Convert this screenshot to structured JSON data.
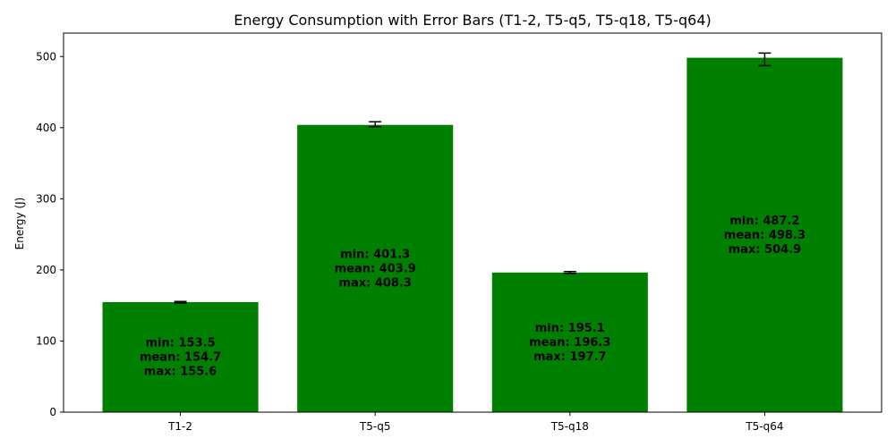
{
  "chart_data": {
    "type": "bar",
    "title": "Energy Consumption with Error Bars (T1-2, T5-q5, T5-q18, T5-q64)",
    "xlabel": "",
    "ylabel": "Energy (J)",
    "ylim": [
      0,
      533
    ],
    "yticks": [
      0,
      100,
      200,
      300,
      400,
      500
    ],
    "categories": [
      "T1-2",
      "T5-q5",
      "T5-q18",
      "T5-q64"
    ],
    "values": [
      154.7,
      403.9,
      196.3,
      498.3
    ],
    "mins": [
      153.5,
      401.3,
      195.1,
      487.2
    ],
    "maxs": [
      155.6,
      408.3,
      197.7,
      504.9
    ],
    "bar_label_lines": [
      [
        "min: 153.5",
        "mean: 154.7",
        "max: 155.6"
      ],
      [
        "min: 401.3",
        "mean: 403.9",
        "max: 408.3"
      ],
      [
        "min: 195.1",
        "mean: 196.3",
        "max: 197.7"
      ],
      [
        "min: 487.2",
        "mean: 498.3",
        "max: 504.9"
      ]
    ],
    "bar_color": "#008000",
    "grid": false,
    "legend": "none"
  }
}
